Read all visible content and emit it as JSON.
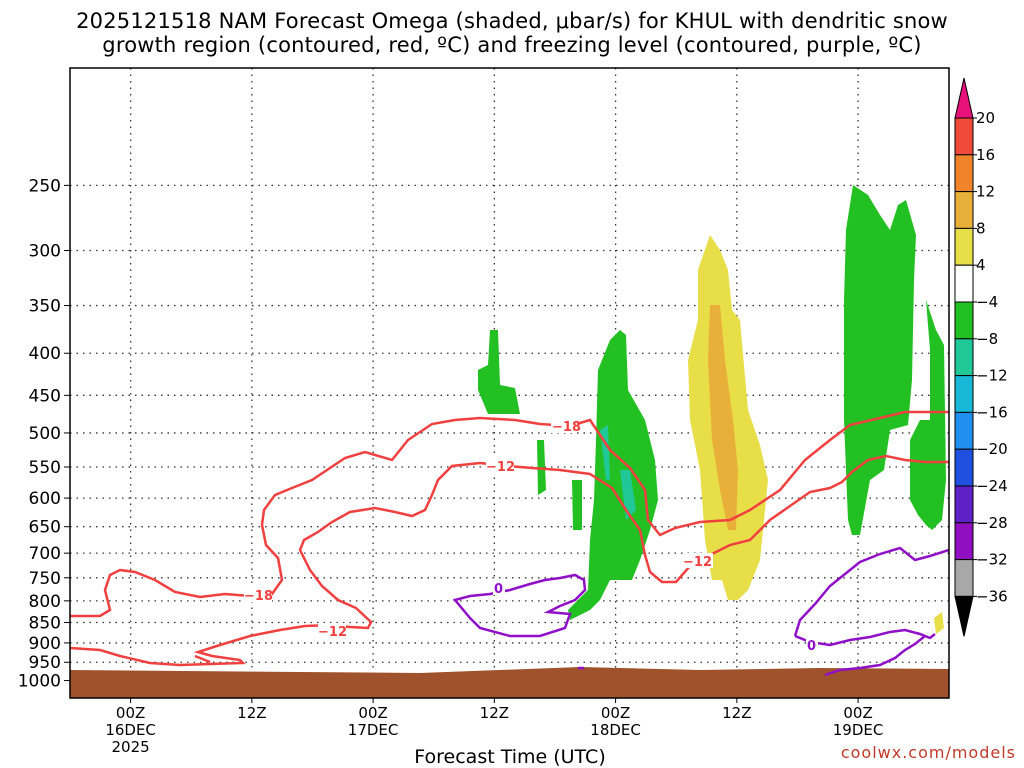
{
  "chart_data": {
    "type": "contour",
    "title_line1": "2025121518 NAM Forecast Omega (shaded, μbar/s) for KHUL with dendritic snow",
    "title_line2": "growth region (contoured, red, ºC) and freezing level (contoured, purple, ºC)",
    "xlabel": "Forecast Time (UTC)",
    "x_range": [
      "2025-12-15T18Z",
      "2025-12-19T09Z"
    ],
    "y_scale": "log-pressure",
    "ylim": [
      1050,
      180
    ],
    "y_ticks": [
      250,
      300,
      350,
      400,
      450,
      500,
      550,
      600,
      650,
      700,
      750,
      800,
      850,
      900,
      950,
      1000
    ],
    "x_ticks": [
      {
        "hour": 6,
        "line1": "00Z",
        "line2": "16DEC",
        "line3": "2025"
      },
      {
        "hour": 18,
        "line1": "12Z",
        "line2": "",
        "line3": ""
      },
      {
        "hour": 30,
        "line1": "00Z",
        "line2": "17DEC",
        "line3": ""
      },
      {
        "hour": 42,
        "line1": "12Z",
        "line2": "",
        "line3": ""
      },
      {
        "hour": 54,
        "line1": "00Z",
        "line2": "18DEC",
        "line3": ""
      },
      {
        "hour": 66,
        "line1": "12Z",
        "line2": "",
        "line3": ""
      },
      {
        "hour": 78,
        "line1": "00Z",
        "line2": "19DEC",
        "line3": ""
      }
    ],
    "grid": true,
    "colorbar": {
      "placement": "right",
      "labels": [
        "20",
        "16",
        "12",
        "8",
        "4",
        "−4",
        "−8",
        "−12",
        "−16",
        "−20",
        "−24",
        "−28",
        "−32",
        "−36"
      ],
      "colors": [
        "#e8107a",
        "#f04a3a",
        "#f0842a",
        "#e8b038",
        "#e8de48",
        "#ffffff",
        "#22c022",
        "#20c898",
        "#18b8d8",
        "#2090f0",
        "#2050e0",
        "#6020c8",
        "#9010c0",
        "#a8a8a8",
        "#000000"
      ]
    },
    "contour_labels": {
      "dgz_minus18": "−18",
      "dgz_minus12": "−12",
      "freezing": "0"
    },
    "colors": {
      "dgz_contour": "#f04040",
      "freezing_contour": "#9010c8",
      "ground": "#a0522d",
      "omega_green": "#22c022",
      "omega_teal": "#20c898",
      "omega_yellow": "#e8de48",
      "omega_orange": "#e8b038"
    }
  },
  "credit": "coolwx.com/models"
}
